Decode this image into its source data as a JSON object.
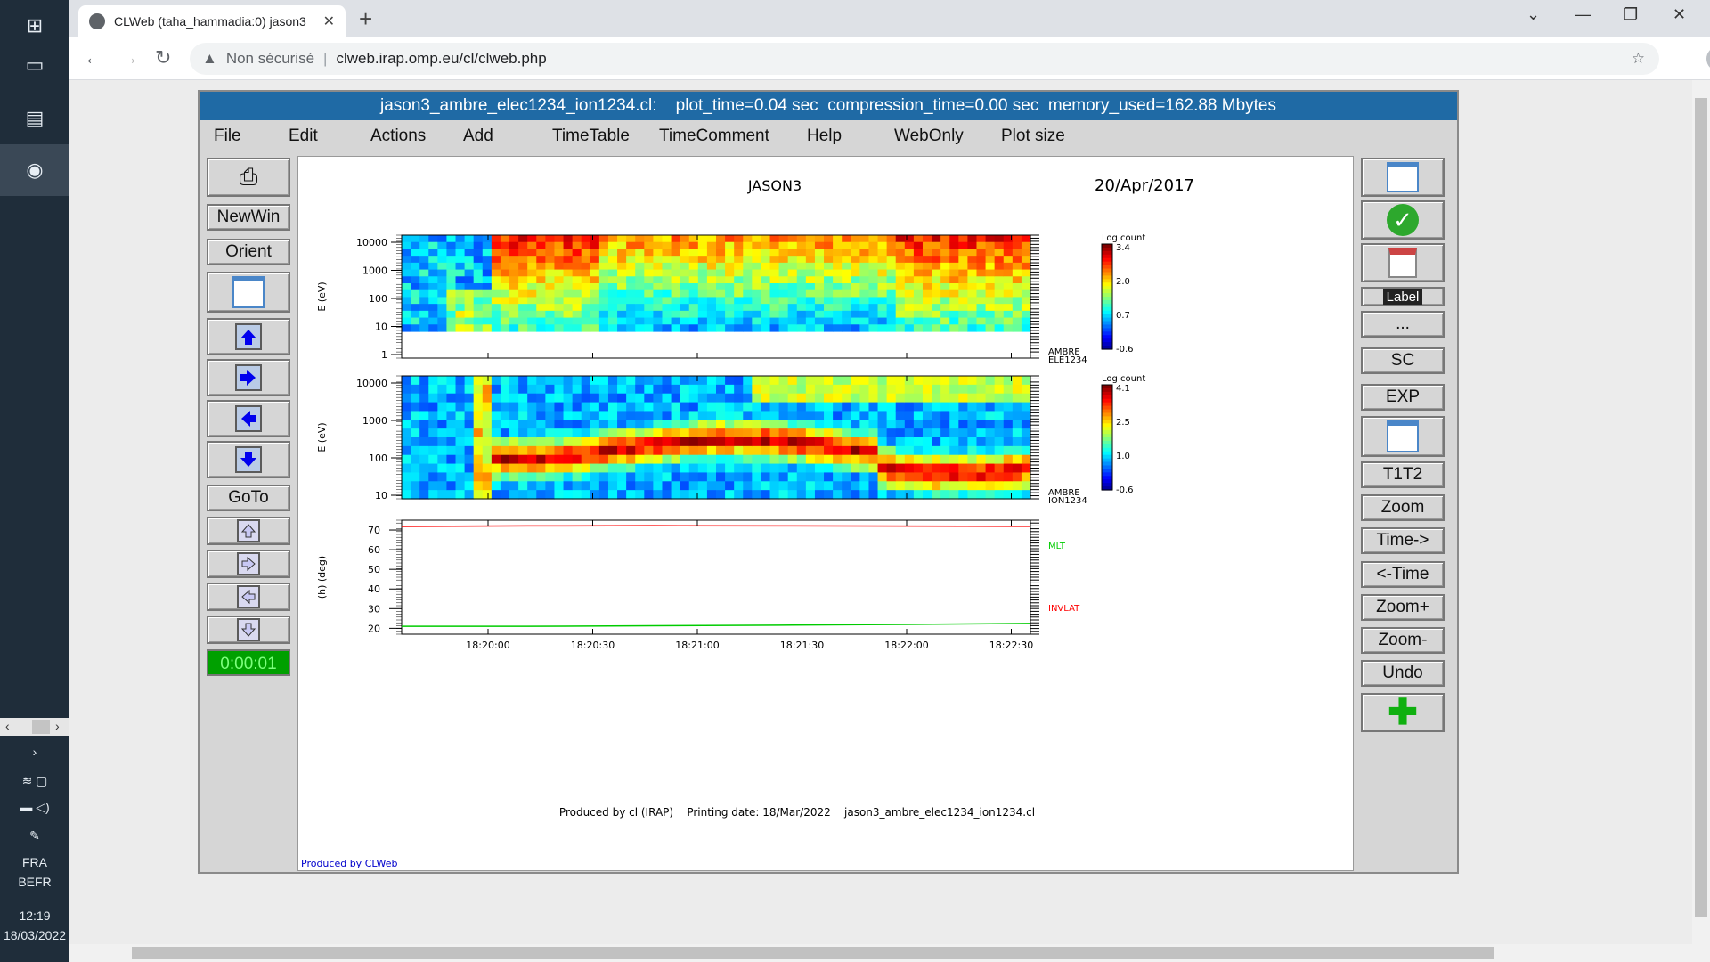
{
  "browser": {
    "tab_title": "CLWeb (taha_hammadia:0) jason3",
    "security_label": "Non sécurisé",
    "url": "clweb.irap.omp.eu/cl/clweb.php"
  },
  "taskbar": {
    "lang": "FRA",
    "layout": "BEFR",
    "time": "12:19",
    "date": "18/03/2022"
  },
  "app": {
    "title": "jason3_ambre_elec1234_ion1234.cl:    plot_time=0.04 sec  compression_time=0.00 sec  memory_used=162.88 Mbytes",
    "menu": [
      "File",
      "Edit",
      "Actions",
      "Add",
      "TimeTable",
      "TimeComment",
      "Help",
      "WebOnly",
      "Plot size"
    ],
    "left_buttons": {
      "newwin": "NewWin",
      "orient": "Orient",
      "goto": "GoTo"
    },
    "timer": "0:00:01",
    "right_buttons": {
      "label": "Label",
      "dots": "...",
      "sc": "SC",
      "exp": "EXP",
      "t1t2": "T1T2",
      "zoom": "Zoom",
      "time_fwd": "Time->",
      "time_back": "<-Time",
      "zoom_plus": "Zoom+",
      "zoom_minus": "Zoom-",
      "undo": "Undo"
    }
  },
  "plot": {
    "mission": "JASON3",
    "date": "20/Apr/2017",
    "footer": "Produced by cl (IRAP)    Printing date: 18/Mar/2022    jason3_ambre_elec1234_ion1234.cl",
    "produced_by": "Produced by CLWeb",
    "x_ticks": [
      "18:20:00",
      "18:20:30",
      "18:21:00",
      "18:21:30",
      "18:22:00",
      "18:22:30"
    ]
  },
  "chart_data": [
    {
      "type": "heatmap",
      "ylabel": "E (eV)",
      "y_ticks": [
        "10000",
        "1000",
        "100",
        "10",
        "1"
      ],
      "side_label": [
        "AMBRE",
        "ELE1234"
      ],
      "colorbar_title": "Log count",
      "colorbar_ticks": [
        "3.4",
        "2.0",
        "0.7",
        "-0.6"
      ]
    },
    {
      "type": "heatmap",
      "ylabel": "E (eV)",
      "y_ticks": [
        "10000",
        "1000",
        "100",
        "10"
      ],
      "side_label": [
        "AMBRE",
        "ION1234"
      ],
      "colorbar_title": "Log count",
      "colorbar_ticks": [
        "4.1",
        "2.5",
        "1.0",
        "-0.6"
      ]
    },
    {
      "type": "line",
      "ylabel": "(h) (deg)",
      "y_ticks": [
        "70",
        "60",
        "50",
        "40",
        "30",
        "20"
      ],
      "ylim": [
        17,
        75
      ],
      "series": [
        {
          "name": "MLT",
          "color": "#00cc00",
          "values": [
            21,
            21,
            21.3,
            21.6,
            22,
            22.5
          ]
        },
        {
          "name": "INVLAT",
          "color": "#ff0000",
          "values": [
            71.8,
            72.1,
            72.2,
            72.1,
            72,
            71.9
          ]
        }
      ]
    }
  ]
}
